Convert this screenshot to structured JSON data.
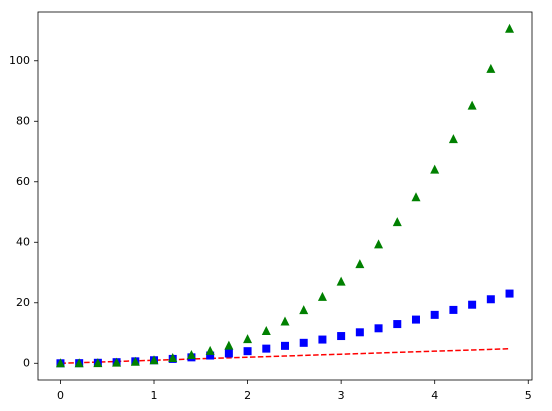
{
  "chart_data": {
    "type": "line",
    "x": [
      0,
      0.2,
      0.4,
      0.6,
      0.8,
      1,
      1.2,
      1.4,
      1.6,
      1.8,
      2,
      2.2,
      2.4,
      2.6,
      2.8,
      3,
      3.2,
      3.4,
      3.6,
      3.8,
      4,
      4.2,
      4.4,
      4.6,
      4.8
    ],
    "series": [
      {
        "color": "red",
        "linestyle": "dashed",
        "marker": "none",
        "values": [
          0,
          0.2,
          0.4,
          0.6,
          0.8,
          1,
          1.2,
          1.4,
          1.6,
          1.8,
          2,
          2.2,
          2.4,
          2.6,
          2.8,
          3,
          3.2,
          3.4,
          3.6,
          3.8,
          4,
          4.2,
          4.4,
          4.6,
          4.8
        ]
      },
      {
        "color": "blue",
        "linestyle": "none",
        "marker": "square",
        "values": [
          0,
          0.04,
          0.16,
          0.36,
          0.64,
          1,
          1.44,
          1.96,
          2.56,
          3.24,
          4,
          4.84,
          5.76,
          6.76,
          7.84,
          9,
          10.24,
          11.56,
          12.96,
          14.44,
          16,
          17.64,
          19.36,
          21.16,
          23.04
        ]
      },
      {
        "color": "green",
        "linestyle": "none",
        "marker": "triangle",
        "values": [
          0,
          0.008,
          0.064,
          0.216,
          0.512,
          1,
          1.728,
          2.744,
          4.096,
          5.832,
          8,
          10.648,
          13.824,
          17.576,
          21.952,
          27,
          32.768,
          39.304,
          46.656,
          54.872,
          64,
          74.088,
          85.184,
          97.336,
          110.592
        ]
      }
    ],
    "xlim": [
      -0.24,
      5.04
    ],
    "xticks": [
      0,
      1,
      2,
      3,
      4,
      5
    ],
    "ylim": [
      -5.5296,
      116.1216
    ],
    "yticks": [
      0,
      20,
      40,
      60,
      80,
      100
    ],
    "grid": false
  }
}
